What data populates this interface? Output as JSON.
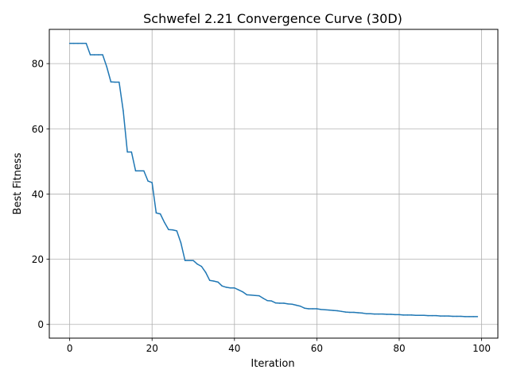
{
  "chart_data": {
    "type": "line",
    "title": "Schwefel 2.21 Convergence Curve (30D)",
    "xlabel": "Iteration",
    "ylabel": "Best Fitness",
    "xlim": [
      -4.95,
      103.95
    ],
    "ylim": [
      -4.2,
      90.5
    ],
    "xticks": [
      0,
      20,
      40,
      60,
      80,
      100
    ],
    "yticks": [
      0,
      20,
      40,
      60,
      80
    ],
    "grid": true,
    "series": [
      {
        "color": "#1f77b4",
        "x": [
          0,
          1,
          2,
          3,
          4,
          5,
          6,
          7,
          8,
          9,
          10,
          11,
          12,
          13,
          14,
          15,
          16,
          17,
          18,
          19,
          20,
          21,
          22,
          23,
          24,
          25,
          26,
          27,
          28,
          29,
          30,
          31,
          32,
          33,
          34,
          35,
          36,
          37,
          38,
          39,
          40,
          41,
          42,
          43,
          44,
          45,
          46,
          47,
          48,
          49,
          50,
          51,
          52,
          53,
          54,
          55,
          56,
          57,
          58,
          59,
          60,
          61,
          62,
          63,
          64,
          65,
          66,
          67,
          68,
          69,
          70,
          71,
          72,
          73,
          74,
          75,
          76,
          77,
          78,
          79,
          80,
          81,
          82,
          83,
          84,
          85,
          86,
          87,
          88,
          89,
          90,
          91,
          92,
          93,
          94,
          95,
          96,
          97,
          98,
          99
        ],
        "values": [
          86.2,
          86.2,
          86.2,
          86.2,
          86.2,
          82.7,
          82.7,
          82.7,
          82.7,
          79.0,
          74.4,
          74.3,
          74.3,
          65.5,
          52.9,
          52.9,
          47.1,
          47.1,
          47.1,
          44.0,
          43.5,
          34.2,
          33.9,
          31.3,
          29.1,
          29.0,
          28.7,
          25.0,
          19.6,
          19.6,
          19.6,
          18.5,
          17.8,
          16.0,
          13.5,
          13.3,
          13.0,
          11.8,
          11.4,
          11.2,
          11.2,
          10.6,
          10.0,
          9.1,
          9.0,
          8.9,
          8.8,
          8.0,
          7.3,
          7.2,
          6.6,
          6.5,
          6.5,
          6.3,
          6.2,
          5.9,
          5.6,
          5.0,
          4.8,
          4.8,
          4.8,
          4.6,
          4.5,
          4.4,
          4.3,
          4.2,
          4.0,
          3.8,
          3.7,
          3.7,
          3.6,
          3.5,
          3.3,
          3.3,
          3.2,
          3.2,
          3.2,
          3.1,
          3.1,
          3.0,
          3.0,
          2.9,
          2.9,
          2.9,
          2.8,
          2.8,
          2.8,
          2.7,
          2.7,
          2.7,
          2.6,
          2.6,
          2.6,
          2.5,
          2.5,
          2.5,
          2.4,
          2.4,
          2.4,
          2.4
        ]
      }
    ]
  }
}
